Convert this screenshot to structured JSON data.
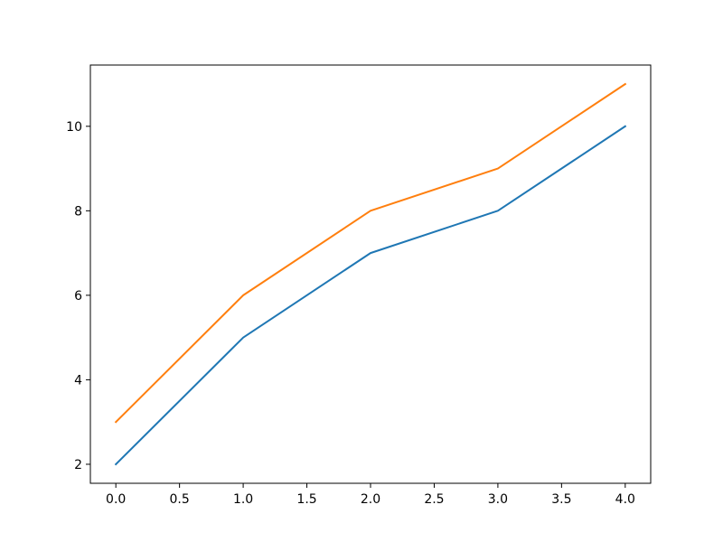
{
  "chart_data": {
    "type": "line",
    "x": [
      0,
      1,
      2,
      3,
      4
    ],
    "series": [
      {
        "color": "#1f77b4",
        "values": [
          2,
          5,
          7,
          8,
          10
        ]
      },
      {
        "color": "#ff7f0e",
        "values": [
          3,
          6,
          8,
          9,
          11
        ]
      }
    ],
    "xlim": [
      -0.2,
      4.2
    ],
    "ylim": [
      1.55,
      11.45
    ],
    "xticks": [
      {
        "value": 0,
        "label": "0.0"
      },
      0.5,
      {
        "value": 1,
        "label": "1.0"
      },
      1.5,
      {
        "value": 2,
        "label": "2.0"
      },
      2.5,
      {
        "value": 3,
        "label": "3.0"
      },
      3.5,
      {
        "value": 4,
        "label": "4.0"
      }
    ],
    "yticks": [
      2,
      4,
      6,
      8,
      10
    ],
    "grid": false
  }
}
